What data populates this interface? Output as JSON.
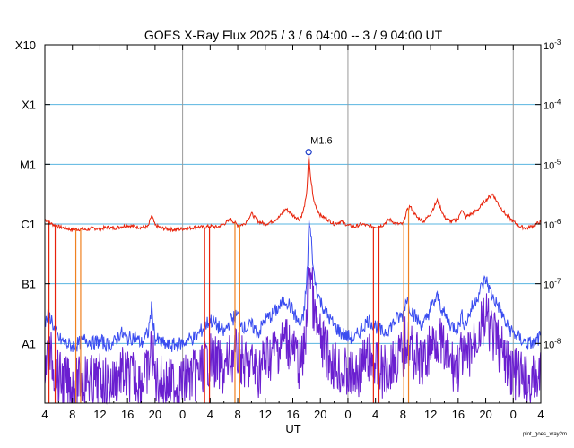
{
  "chart_data": {
    "type": "line",
    "title": "GOES X-Ray Flux   2025 /  3 /  6   04:00 --  3 /  9   04:00   UT",
    "xlabel": "UT",
    "x_tick_labels": [
      "4",
      "8",
      "12",
      "16",
      "20",
      "0",
      "4",
      "8",
      "12",
      "16",
      "20",
      "0",
      "4",
      "8",
      "12",
      "16",
      "20",
      "0",
      "4"
    ],
    "x_range_hours": [
      0,
      72
    ],
    "day_boundaries_hours": [
      20,
      44,
      68
    ],
    "y_scale": "log",
    "ylim_w_per_m2": [
      1e-09,
      0.001
    ],
    "left_axis_labels": [
      {
        "label": "X10",
        "value": 0.001
      },
      {
        "label": "X1",
        "value": 0.0001
      },
      {
        "label": "M1",
        "value": 1e-05
      },
      {
        "label": "C1",
        "value": 1e-06
      },
      {
        "label": "B1",
        "value": 1e-07
      },
      {
        "label": "A1",
        "value": 1e-08
      }
    ],
    "right_axis_labels": [
      {
        "base": "10",
        "exp": "-3",
        "value": 0.001
      },
      {
        "base": "10",
        "exp": "-4",
        "value": 0.0001
      },
      {
        "base": "10",
        "exp": "-5",
        "value": 1e-05
      },
      {
        "base": "10",
        "exp": "-6",
        "value": 1e-06
      },
      {
        "base": "10",
        "exp": "-7",
        "value": 1e-07
      },
      {
        "base": "10",
        "exp": "-8",
        "value": 1e-08
      }
    ],
    "annotation": {
      "text": "M1.6",
      "x_hours": 38.3,
      "value": 1.6e-05
    },
    "colors": {
      "long_channel": "#e8220a",
      "short_channel": "#3a4cf0",
      "short_channel_low": "#6a1fd0",
      "gap_marks": "#f08020",
      "grid": "#5ab4e0",
      "day_lines": "#999999",
      "peak_marker": "#1a3ac8"
    },
    "series": [
      {
        "key": "long",
        "x": [
          0,
          0.5,
          1,
          1.5,
          2,
          3,
          4,
          5,
          6,
          7,
          8,
          9,
          10,
          11,
          12,
          13,
          14,
          15,
          15.5,
          16,
          17,
          18,
          19,
          20,
          21,
          22,
          23,
          24,
          25,
          26,
          27,
          28,
          29,
          30,
          31,
          32,
          33,
          34,
          35,
          36,
          37,
          37.5,
          38,
          38.2,
          38.3,
          38.5,
          38.8,
          39,
          39.5,
          40,
          41,
          42,
          43,
          44,
          45,
          46,
          47,
          48,
          49,
          50,
          51,
          52,
          52.5,
          53,
          54,
          55,
          56,
          57,
          58,
          59,
          60,
          60.5,
          61,
          62,
          63,
          64,
          65,
          66,
          67,
          68,
          69,
          70,
          71,
          72
        ],
        "values": [
          1.2e-06,
          1.1e-06,
          1e-06,
          9.5e-07,
          9e-07,
          8.5e-07,
          8e-07,
          8.2e-07,
          8e-07,
          8.5e-07,
          8.3e-07,
          8.8e-07,
          8.5e-07,
          9e-07,
          9.5e-07,
          9e-07,
          8.8e-07,
          9e-07,
          1.4e-06,
          9.5e-07,
          8.5e-07,
          8.2e-07,
          8e-07,
          8.3e-07,
          8.5e-07,
          9e-07,
          8.8e-07,
          9.2e-07,
          8.8e-07,
          1e-06,
          1.2e-06,
          9.5e-07,
          1e-06,
          1.5e-06,
          1.1e-06,
          1e-06,
          1.1e-06,
          1.3e-06,
          1.8e-06,
          1.4e-06,
          1.2e-06,
          1.6e-06,
          3e-06,
          8e-06,
          1.6e-05,
          7e-06,
          4e-06,
          2.5e-06,
          1.8e-06,
          1.4e-06,
          1.2e-06,
          1e-06,
          1.1e-06,
          9.5e-07,
          9e-07,
          1e-06,
          9.2e-07,
          9e-07,
          9.5e-07,
          1.2e-06,
          1e-06,
          1e-06,
          1.6e-06,
          2e-06,
          1.3e-06,
          1.1e-06,
          1.5e-06,
          2.5e-06,
          1.3e-06,
          1.1e-06,
          1.2e-06,
          1.8e-06,
          1.3e-06,
          1.5e-06,
          1.8e-06,
          2.5e-06,
          3.2e-06,
          2e-06,
          1.4e-06,
          1.1e-06,
          9e-07,
          8.5e-07,
          9.5e-07,
          1.1e-06
        ]
      },
      {
        "key": "short",
        "x": [
          0,
          0.5,
          1,
          1.5,
          2,
          3,
          4,
          5,
          6,
          7,
          8,
          9,
          10,
          11,
          12,
          13,
          14,
          15,
          15.5,
          16,
          17,
          18,
          19,
          20,
          21,
          22,
          23,
          24,
          25,
          26,
          27,
          28,
          29,
          30,
          31,
          32,
          33,
          34,
          35,
          36,
          37,
          37.5,
          38,
          38.2,
          38.3,
          38.5,
          38.8,
          39,
          39.5,
          40,
          41,
          42,
          43,
          44,
          45,
          46,
          47,
          48,
          49,
          50,
          51,
          52,
          52.5,
          53,
          54,
          55,
          56,
          57,
          58,
          59,
          60,
          60.5,
          61,
          62,
          63,
          64,
          65,
          66,
          67,
          68,
          69,
          70,
          71,
          72
        ],
        "values": [
          2e-08,
          3e-08,
          2.5e-08,
          1.5e-08,
          1.2e-08,
          1e-08,
          9e-09,
          1e-08,
          1.2e-08,
          1e-08,
          1.1e-08,
          9.5e-09,
          1e-08,
          1.5e-08,
          1.2e-08,
          1.3e-08,
          1e-08,
          1.5e-08,
          4e-08,
          1.2e-08,
          1e-08,
          9e-09,
          9.5e-09,
          1e-08,
          1.2e-08,
          1.3e-08,
          1.8e-08,
          2.5e-08,
          2e-08,
          1.5e-08,
          2.5e-08,
          3e-08,
          1.8e-08,
          2e-08,
          1.5e-08,
          2.5e-08,
          3e-08,
          4e-08,
          5.5e-08,
          3.5e-08,
          2e-08,
          2.5e-08,
          1e-07,
          3e-07,
          1.2e-06,
          8e-07,
          4e-07,
          1.5e-07,
          8e-08,
          5e-08,
          3e-08,
          2e-08,
          1.5e-08,
          1.3e-08,
          1.2e-08,
          1.8e-08,
          2.5e-08,
          2e-08,
          1.5e-08,
          1.8e-08,
          2.5e-08,
          3e-08,
          6e-08,
          4e-08,
          2.5e-08,
          2e-08,
          4e-08,
          6e-08,
          3e-08,
          2e-08,
          1.8e-08,
          3e-08,
          2e-08,
          4e-08,
          7e-08,
          1.2e-07,
          6e-08,
          4e-08,
          2e-08,
          1.5e-08,
          1.2e-08,
          1e-08,
          1e-08,
          1.3e-08
        ]
      }
    ],
    "gap_drops_hours": [
      {
        "x": 0.6,
        "color_key": "long_channel"
      },
      {
        "x": 1.5,
        "color_key": "long_channel"
      },
      {
        "x": 4.5,
        "color_key": "gap_marks"
      },
      {
        "x": 5.2,
        "color_key": "gap_marks"
      },
      {
        "x": 23.2,
        "color_key": "long_channel"
      },
      {
        "x": 23.9,
        "color_key": "long_channel"
      },
      {
        "x": 27.6,
        "color_key": "gap_marks"
      },
      {
        "x": 28.3,
        "color_key": "gap_marks"
      },
      {
        "x": 47.7,
        "color_key": "long_channel"
      },
      {
        "x": 48.5,
        "color_key": "long_channel"
      },
      {
        "x": 52.1,
        "color_key": "gap_marks"
      },
      {
        "x": 52.8,
        "color_key": "gap_marks"
      }
    ]
  },
  "credit": "plot_goes_xray2m"
}
